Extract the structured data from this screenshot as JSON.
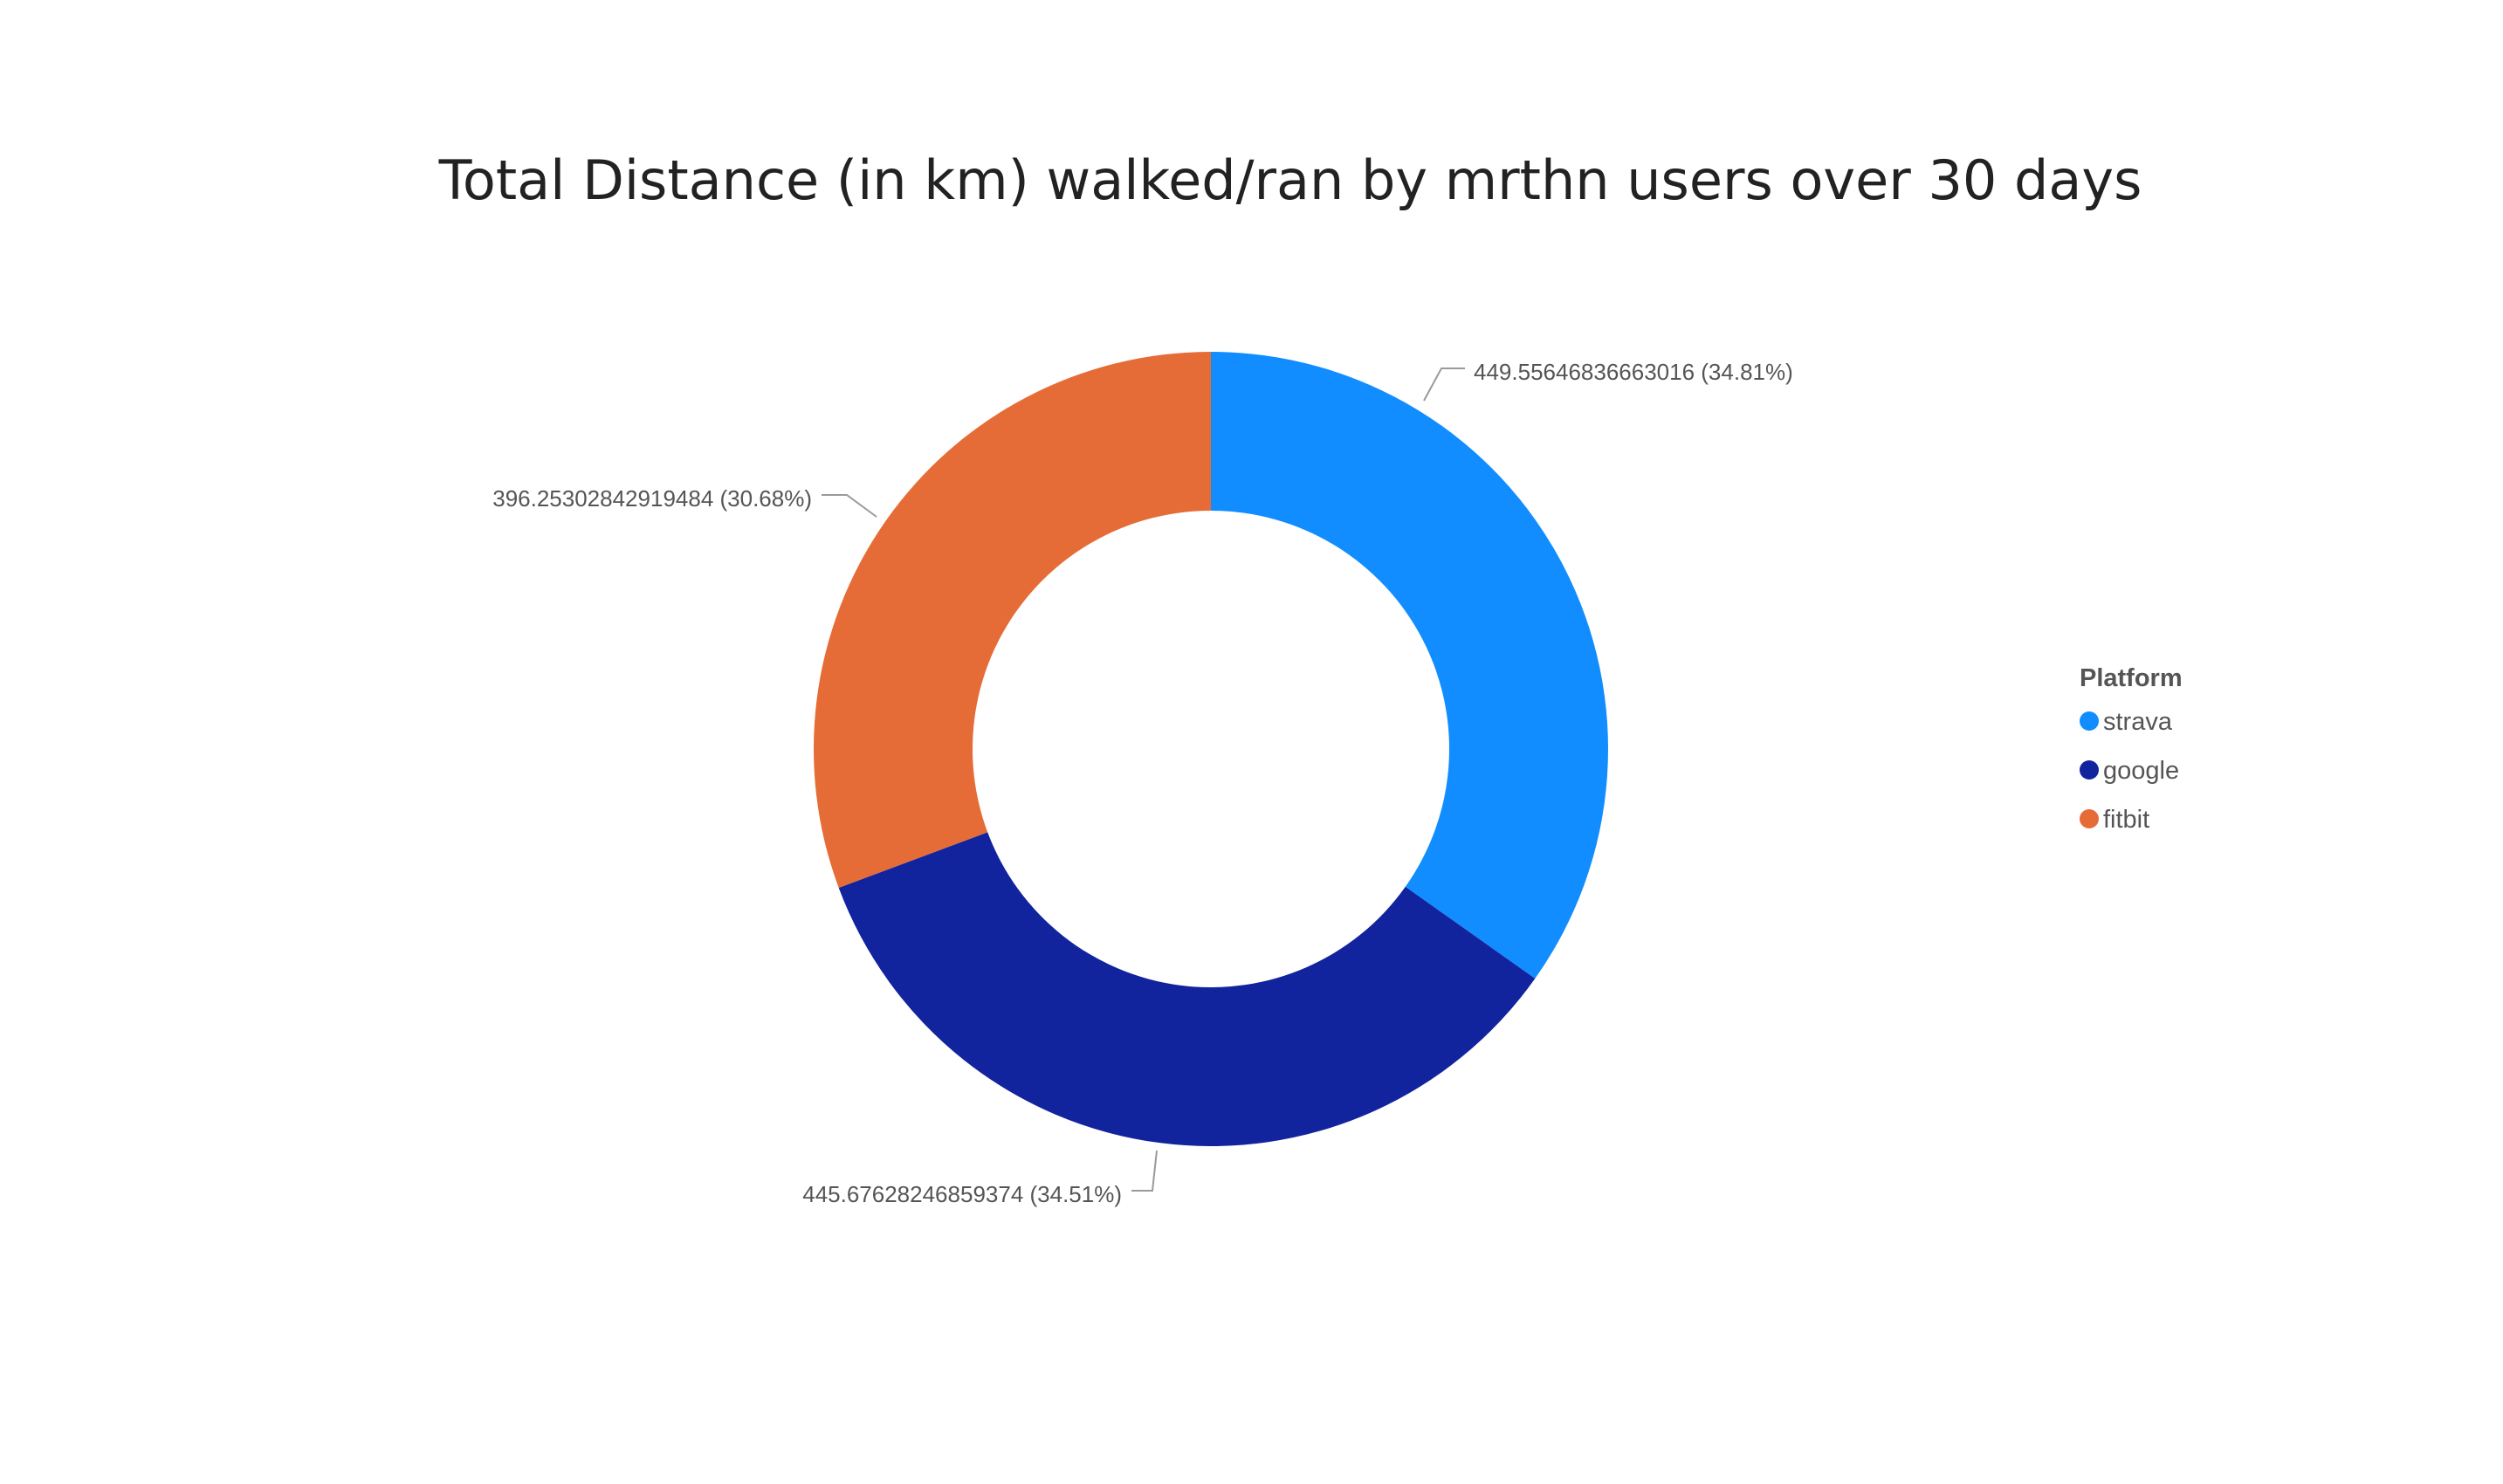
{
  "chart_data": {
    "type": "pie",
    "variant": "donut",
    "title": "Total Distance (in km) walked/ran by mrthn users over 30 days",
    "legend": {
      "title": "Platform",
      "placement": "right"
    },
    "categories": [
      "strava",
      "google",
      "fitbit"
    ],
    "values": [
      449.55646836663016,
      445.67628246859374,
      396.25302842919484
    ],
    "percentages": [
      34.81,
      34.51,
      30.68
    ],
    "data_labels": [
      "449.55646836663016 (34.81%)",
      "445.67628246859374 (34.51%)",
      "396.25302842919484 (30.68%)"
    ],
    "colors": [
      "#118DFF",
      "#12239E",
      "#E66C37"
    ]
  }
}
